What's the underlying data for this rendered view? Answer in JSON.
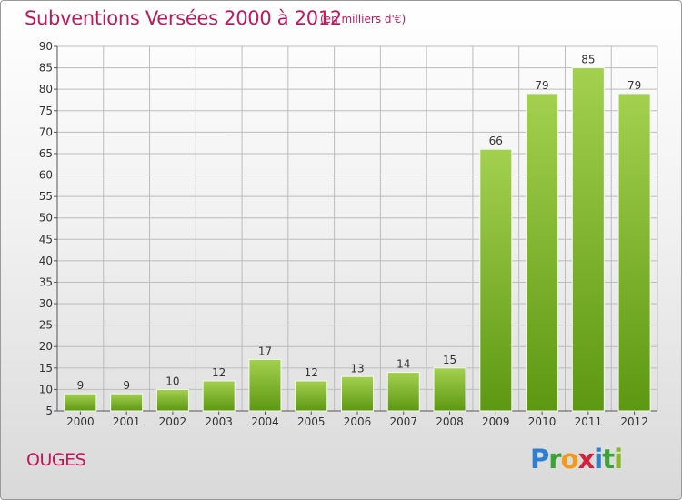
{
  "header": {
    "title": "Subventions Versées 2000 à 2012",
    "subtitle": "(en milliers d'€)"
  },
  "footer": {
    "commune": "OUGES",
    "logo_text": "Proxiti"
  },
  "colors": {
    "title": "#c2185b",
    "bar_light": "#9ccc4a",
    "bar_dark": "#5f9a12",
    "grid": "#bcbcbc"
  },
  "chart_data": {
    "type": "bar",
    "title": "Subventions Versées 2000 à 2012",
    "subtitle": "(en milliers d'€)",
    "xlabel": "",
    "ylabel": "",
    "categories": [
      "2000",
      "2001",
      "2002",
      "2003",
      "2004",
      "2005",
      "2006",
      "2007",
      "2008",
      "2009",
      "2010",
      "2011",
      "2012"
    ],
    "values": [
      9,
      9,
      10,
      12,
      17,
      12,
      13,
      14,
      15,
      66,
      79,
      85,
      79
    ],
    "ylim": [
      5,
      90
    ],
    "yticks": [
      5,
      10,
      15,
      20,
      25,
      30,
      35,
      40,
      45,
      50,
      55,
      60,
      65,
      70,
      75,
      80,
      85,
      90
    ],
    "grid": true,
    "legend": "none"
  }
}
